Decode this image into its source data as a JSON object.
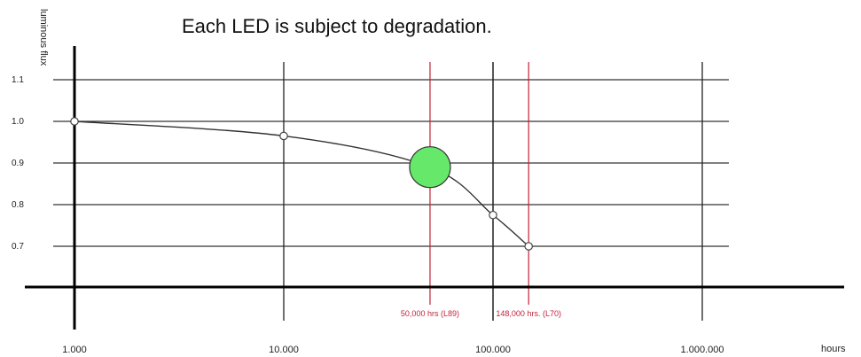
{
  "chart_data": {
    "type": "line",
    "title": "Each LED is subject to degradation.",
    "ylabel": "luminous flux",
    "xlabel": "hours",
    "xscale": "log",
    "xlim": [
      1000,
      1000000
    ],
    "ylim": [
      0.6,
      1.1
    ],
    "yticks": [
      0.7,
      0.8,
      0.9,
      1.0,
      1.1
    ],
    "ytick_labels": [
      "0.7",
      "0.8",
      "0.9",
      "1.0",
      "1.1"
    ],
    "xticks": [
      1000,
      10000,
      100000,
      1000000
    ],
    "xtick_labels": [
      "1.000",
      "10.000",
      "100.000",
      "1.000.000"
    ],
    "grid": true,
    "series": [
      {
        "x": [
          1000,
          10000,
          50000,
          100000,
          148000
        ],
        "y": [
          1.0,
          0.965,
          0.89,
          0.775,
          0.7
        ],
        "color": "#333333"
      }
    ],
    "highlight": {
      "x": 50000,
      "y": 0.89,
      "color": "#66e86a"
    },
    "annotations": [
      {
        "x": 50000,
        "text": "50,000 hrs (L89)",
        "color": "#c2223a"
      },
      {
        "x": 148000,
        "text": "148,000 hrs. (L70)",
        "color": "#c2223a"
      }
    ]
  }
}
